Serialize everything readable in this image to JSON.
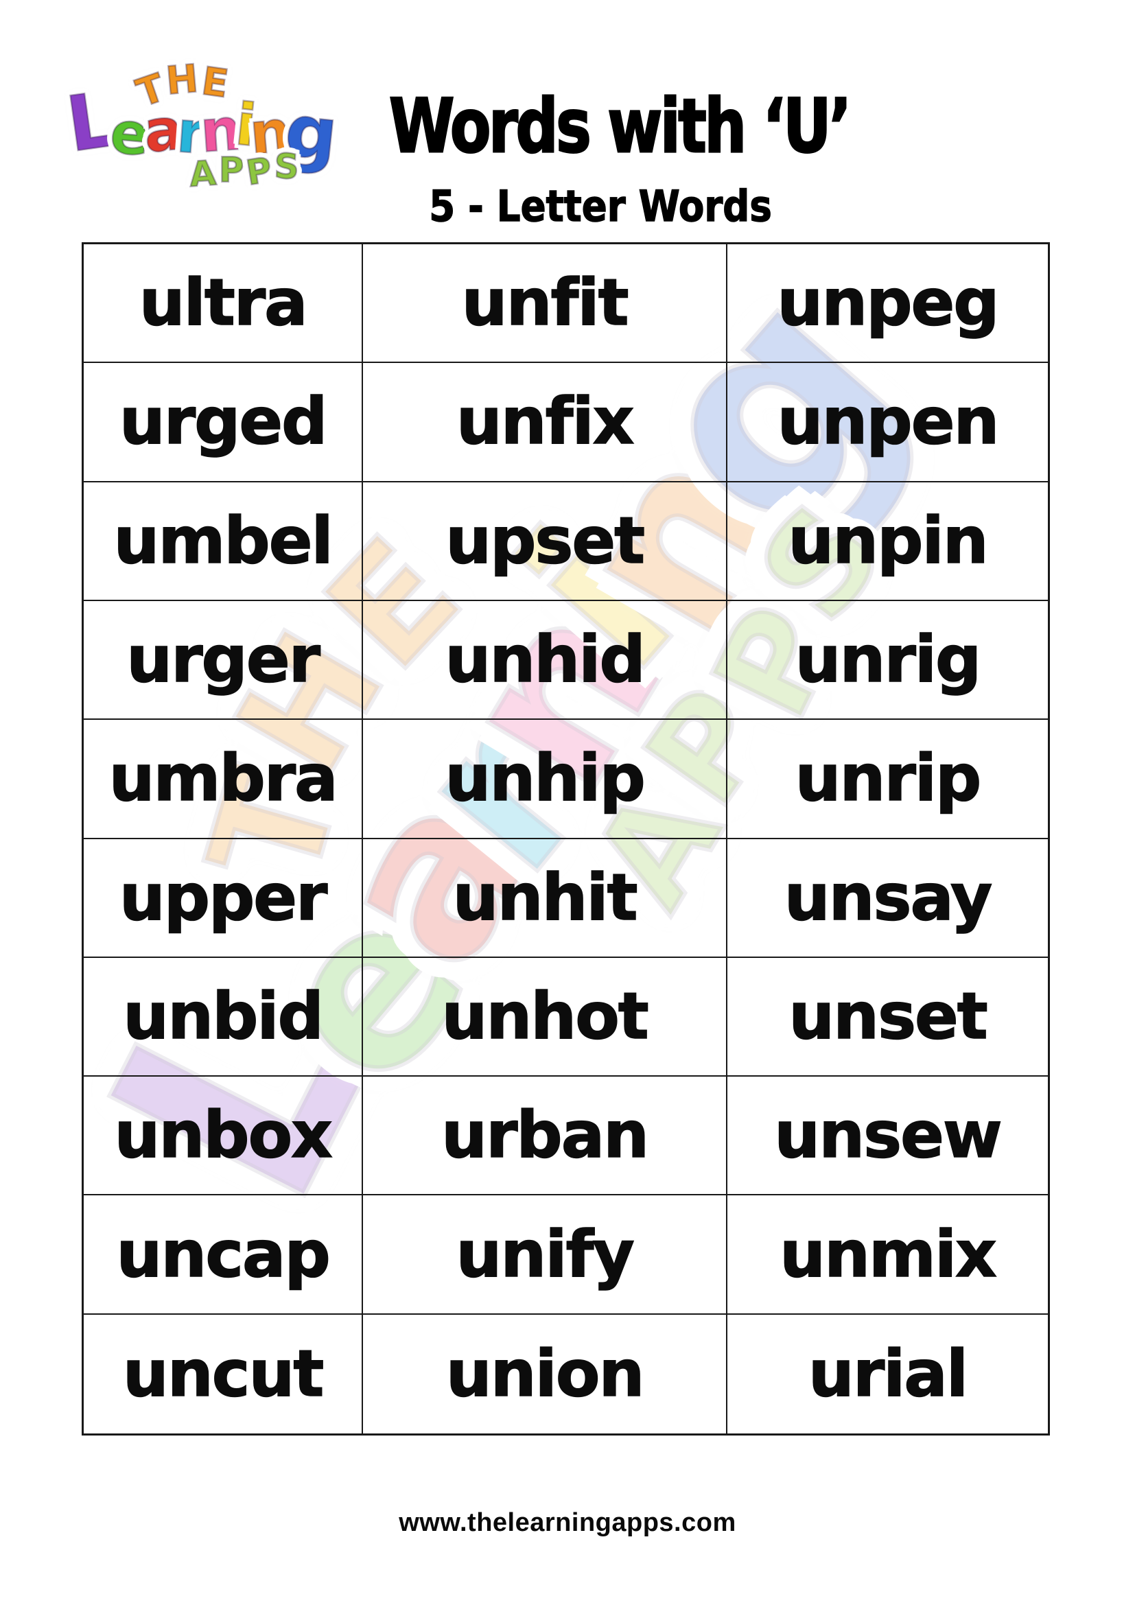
{
  "header": {
    "title": "Words with ‘U’",
    "subtitle": "5 - Letter Words"
  },
  "logo": {
    "the": {
      "text": "THE",
      "color": "#f0941e"
    },
    "learning": [
      {
        "ch": "L",
        "color": "#8a3fc6"
      },
      {
        "ch": "e",
        "color": "#56c22d"
      },
      {
        "ch": "a",
        "color": "#e23a2c"
      },
      {
        "ch": "r",
        "color": "#27b5da"
      },
      {
        "ch": "n",
        "color": "#f0569e"
      },
      {
        "ch": "i",
        "color": "#f2cf1d"
      },
      {
        "ch": "n",
        "color": "#f08a1f"
      },
      {
        "ch": "g",
        "color": "#2e62d0"
      }
    ],
    "apps": {
      "text": "APPS",
      "color": "#8dc63f"
    }
  },
  "word_table": {
    "columns": 3,
    "rows": [
      [
        "ultra",
        "unfit",
        "unpeg"
      ],
      [
        "urged",
        "unfix",
        "unpen"
      ],
      [
        "umbel",
        "upset",
        "unpin"
      ],
      [
        "urger",
        "unhid",
        "unrig"
      ],
      [
        "umbra",
        "unhip",
        "unrip"
      ],
      [
        "upper",
        "unhit",
        "unsay"
      ],
      [
        "unbid",
        "unhot",
        "unset"
      ],
      [
        "unbox",
        "urban",
        "unsew"
      ],
      [
        "uncap",
        "unify",
        "unmix"
      ],
      [
        "uncut",
        "union",
        "urial"
      ]
    ]
  },
  "footer": {
    "url": "www.thelearningapps.com"
  },
  "colors": {
    "background": "#ffffff",
    "text": "#0c0c0c",
    "border": "#191919"
  }
}
